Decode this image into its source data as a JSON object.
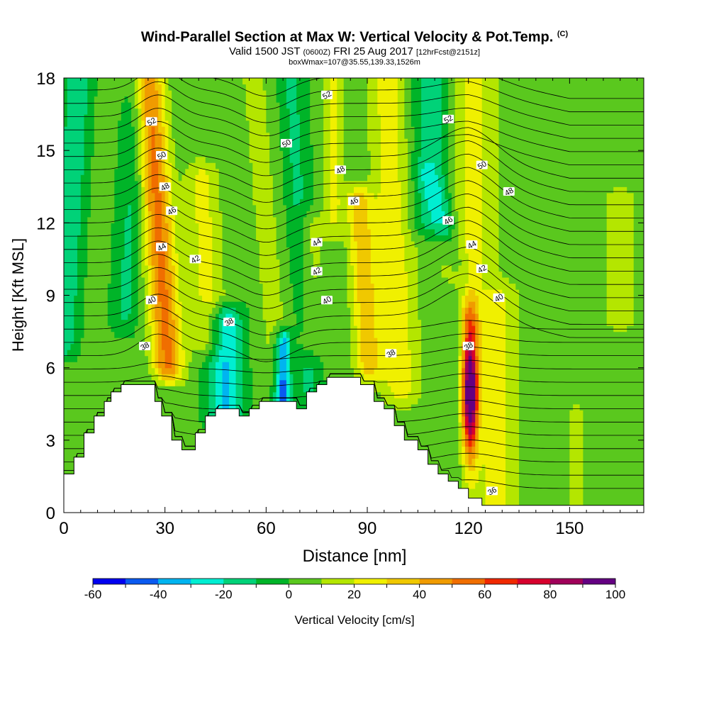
{
  "header": {
    "title_main": "Wind-Parallel Section at Max W: Vertical Velocity & Pot.Temp.",
    "title_mark": "(C)",
    "valid_a": "Valid 1500 JST",
    "valid_b": "(0600Z)",
    "valid_c": "FRI 25 Aug 2017",
    "valid_d": "[12hrFcst@2151z]",
    "box_info": "boxWmax=107@35.55,139.33,1526m"
  },
  "chart_data": {
    "type": "contour-section",
    "xlabel": "Distance [nm]",
    "ylabel": "Height [Kft MSL]",
    "xlim": [
      0,
      172
    ],
    "ylim": [
      0,
      18
    ],
    "x_ticks": [
      "0",
      "30",
      "60",
      "90",
      "120",
      "150"
    ],
    "y_ticks": [
      "0",
      "3",
      "6",
      "9",
      "12",
      "15",
      "18"
    ],
    "colorbar": {
      "label": "Vertical Velocity [cm/s]",
      "levels": [
        -60,
        -50,
        -40,
        -30,
        -20,
        -10,
        0,
        10,
        20,
        30,
        40,
        50,
        60,
        70,
        80,
        90,
        100
      ],
      "tick_labels": [
        "-60",
        "-40",
        "-20",
        "0",
        "20",
        "40",
        "60",
        "80",
        "100"
      ],
      "colors": [
        "#0000f0",
        "#0a5af0",
        "#00b4f0",
        "#00eed2",
        "#00d278",
        "#00b428",
        "#5ac81e",
        "#b4e600",
        "#f0f000",
        "#f0c800",
        "#f09b00",
        "#f06e00",
        "#f02800",
        "#d7002d",
        "#a0005a",
        "#640082"
      ]
    },
    "terrain_top_kft": [
      [
        0,
        1.6
      ],
      [
        3,
        1.6
      ],
      [
        3,
        2.3
      ],
      [
        6,
        2.3
      ],
      [
        6,
        3.3
      ],
      [
        9,
        3.3
      ],
      [
        9,
        4.0
      ],
      [
        12,
        4.0
      ],
      [
        12,
        4.6
      ],
      [
        14,
        4.6
      ],
      [
        14,
        5.0
      ],
      [
        17,
        5.0
      ],
      [
        17,
        5.3
      ],
      [
        27,
        5.3
      ],
      [
        27,
        4.6
      ],
      [
        29,
        4.6
      ],
      [
        29,
        4.0
      ],
      [
        32,
        4.0
      ],
      [
        32,
        3.0
      ],
      [
        35,
        3.0
      ],
      [
        35,
        2.6
      ],
      [
        39,
        2.6
      ],
      [
        39,
        3.3
      ],
      [
        42,
        3.3
      ],
      [
        42,
        4.0
      ],
      [
        45,
        4.0
      ],
      [
        45,
        4.3
      ],
      [
        52,
        4.3
      ],
      [
        52,
        4.0
      ],
      [
        55,
        4.0
      ],
      [
        55,
        4.3
      ],
      [
        58,
        4.3
      ],
      [
        58,
        4.6
      ],
      [
        69,
        4.6
      ],
      [
        69,
        4.3
      ],
      [
        72,
        4.3
      ],
      [
        72,
        5.0
      ],
      [
        75,
        5.0
      ],
      [
        75,
        5.3
      ],
      [
        78,
        5.3
      ],
      [
        78,
        5.6
      ],
      [
        88,
        5.6
      ],
      [
        88,
        5.3
      ],
      [
        92,
        5.3
      ],
      [
        92,
        4.6
      ],
      [
        95,
        4.6
      ],
      [
        95,
        4.3
      ],
      [
        98,
        4.3
      ],
      [
        98,
        3.6
      ],
      [
        101,
        3.6
      ],
      [
        101,
        3.0
      ],
      [
        105,
        3.0
      ],
      [
        105,
        2.6
      ],
      [
        108,
        2.6
      ],
      [
        108,
        2.0
      ],
      [
        111,
        2.0
      ],
      [
        111,
        1.6
      ],
      [
        114,
        1.6
      ],
      [
        114,
        1.3
      ],
      [
        117,
        1.3
      ],
      [
        117,
        1.0
      ],
      [
        120,
        1.0
      ],
      [
        120,
        0.6
      ],
      [
        124,
        0.6
      ],
      [
        124,
        0.3
      ],
      [
        172,
        0.3
      ]
    ],
    "w_features": [
      {
        "x": 29,
        "z": 14.5,
        "w": 50,
        "note": "updraft column"
      },
      {
        "x": 29,
        "z": 5.0,
        "w": -45
      },
      {
        "x": 64,
        "z": 5.5,
        "w": -45
      },
      {
        "x": 49,
        "z": 6.0,
        "w": -35
      },
      {
        "x": 90,
        "z": 7.0,
        "w": 30
      },
      {
        "x": 120,
        "z": 5.0,
        "w": 100,
        "note": "max W = 107 cm/s"
      }
    ],
    "theta_contour_labels": [
      {
        "text": "52",
        "x": 26,
        "z": 16.2
      },
      {
        "text": "50",
        "x": 29,
        "z": 14.8
      },
      {
        "text": "48",
        "x": 30,
        "z": 13.5
      },
      {
        "text": "46",
        "x": 32,
        "z": 12.5
      },
      {
        "text": "44",
        "x": 29,
        "z": 11.0
      },
      {
        "text": "42",
        "x": 39,
        "z": 10.5
      },
      {
        "text": "40",
        "x": 26,
        "z": 8.8
      },
      {
        "text": "38",
        "x": 24,
        "z": 6.9
      },
      {
        "text": "38",
        "x": 49,
        "z": 7.9
      },
      {
        "text": "52",
        "x": 78,
        "z": 17.3
      },
      {
        "text": "50",
        "x": 66,
        "z": 15.3
      },
      {
        "text": "48",
        "x": 82,
        "z": 14.2
      },
      {
        "text": "46",
        "x": 86,
        "z": 12.9
      },
      {
        "text": "44",
        "x": 75,
        "z": 11.2
      },
      {
        "text": "42",
        "x": 75,
        "z": 10.0
      },
      {
        "text": "40",
        "x": 78,
        "z": 8.8
      },
      {
        "text": "38",
        "x": 97,
        "z": 6.6
      },
      {
        "text": "52",
        "x": 114,
        "z": 16.3
      },
      {
        "text": "50",
        "x": 124,
        "z": 14.4
      },
      {
        "text": "48",
        "x": 132,
        "z": 13.3
      },
      {
        "text": "46",
        "x": 114,
        "z": 12.1
      },
      {
        "text": "44",
        "x": 121,
        "z": 11.1
      },
      {
        "text": "42",
        "x": 124,
        "z": 10.1
      },
      {
        "text": "40",
        "x": 129,
        "z": 8.9
      },
      {
        "text": "38",
        "x": 120,
        "z": 6.9
      },
      {
        "text": "36",
        "x": 127,
        "z": 0.9
      }
    ]
  }
}
